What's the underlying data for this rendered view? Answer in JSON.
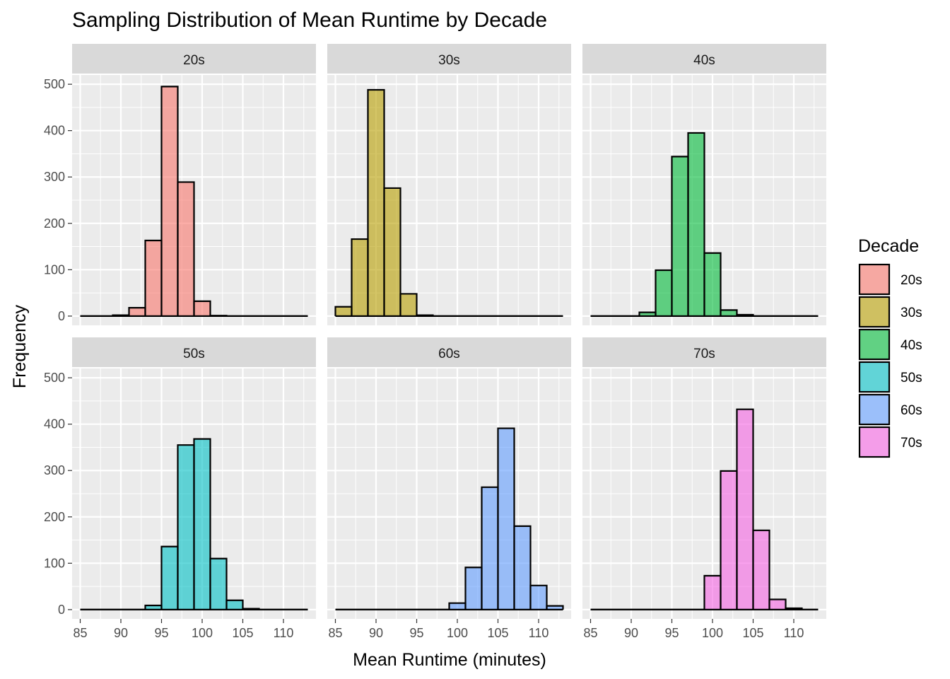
{
  "chart_data": {
    "type": "histogram",
    "title": "Sampling Distribution of Mean Runtime by Decade",
    "xlabel": "Mean Runtime (minutes)",
    "ylabel": "Frequency",
    "xlim": [
      84,
      114
    ],
    "ylim": [
      -20,
      520
    ],
    "x_ticks": [
      85,
      90,
      95,
      100,
      105,
      110
    ],
    "y_ticks": [
      0,
      100,
      200,
      300,
      400,
      500
    ],
    "bin_width": 2,
    "bin_starts": [
      85,
      87,
      89,
      91,
      93,
      95,
      97,
      99,
      101,
      103,
      105,
      107,
      109,
      111
    ],
    "layout": {
      "rows": 2,
      "cols": 3
    },
    "grid": true,
    "legend": {
      "title": "Decade",
      "position": "right"
    },
    "series": [
      {
        "name": "20s",
        "color": "#F8766D",
        "counts": [
          0,
          0,
          2,
          18,
          163,
          495,
          289,
          32,
          1,
          0,
          0,
          0,
          0,
          0
        ]
      },
      {
        "name": "30s",
        "color": "#B79F00",
        "counts": [
          20,
          166,
          488,
          276,
          48,
          2,
          0,
          0,
          0,
          0,
          0,
          0,
          0,
          0
        ]
      },
      {
        "name": "40s",
        "color": "#00BA38",
        "counts": [
          0,
          0,
          0,
          8,
          99,
          344,
          395,
          136,
          13,
          3,
          0,
          0,
          0,
          0
        ]
      },
      {
        "name": "50s",
        "color": "#00BFC4",
        "counts": [
          0,
          0,
          0,
          0,
          9,
          136,
          355,
          368,
          110,
          20,
          2,
          0,
          0,
          0
        ]
      },
      {
        "name": "60s",
        "color": "#619CFF",
        "counts": [
          0,
          0,
          0,
          0,
          0,
          0,
          0,
          14,
          91,
          264,
          391,
          180,
          52,
          8
        ]
      },
      {
        "name": "70s",
        "color": "#F564E3",
        "counts": [
          0,
          0,
          0,
          0,
          0,
          0,
          0,
          73,
          299,
          432,
          171,
          22,
          3,
          0
        ]
      }
    ]
  }
}
